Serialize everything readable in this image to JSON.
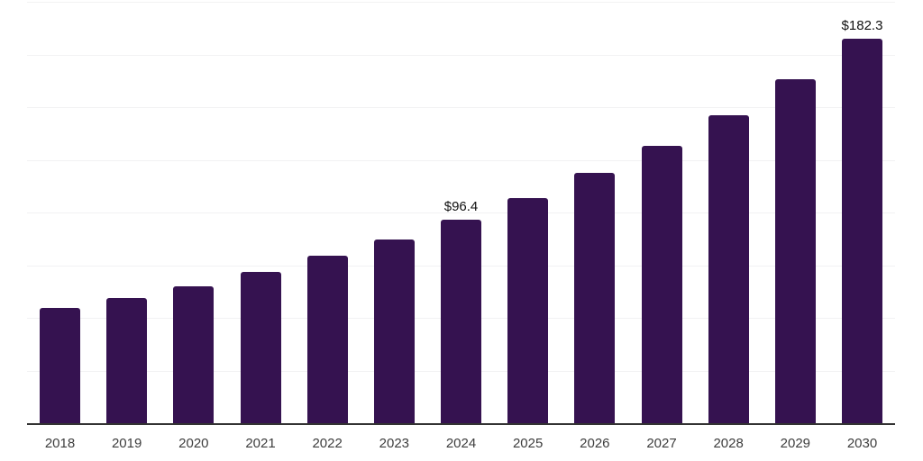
{
  "chart_data": {
    "type": "bar",
    "title": "",
    "xlabel": "",
    "ylabel": "",
    "categories": [
      "2018",
      "2019",
      "2020",
      "2021",
      "2022",
      "2023",
      "2024",
      "2025",
      "2026",
      "2027",
      "2028",
      "2029",
      "2030"
    ],
    "values": [
      54.7,
      59.4,
      65.0,
      71.8,
      79.5,
      87.2,
      96.4,
      106.7,
      118.6,
      131.7,
      146.3,
      163.2,
      182.3
    ],
    "data_labels": {
      "2024": "$96.4",
      "2030": "$182.3"
    },
    "ylim": [
      0,
      200
    ],
    "gridline_step": 25,
    "grid": "horizontal",
    "legend": "none",
    "colors": {
      "bar": "#351250",
      "axis_line": "#333333",
      "gridline": "#f2f2f3",
      "x_label_text": "#3d3d3d",
      "data_label_text": "#111111",
      "background": "#ffffff"
    }
  }
}
